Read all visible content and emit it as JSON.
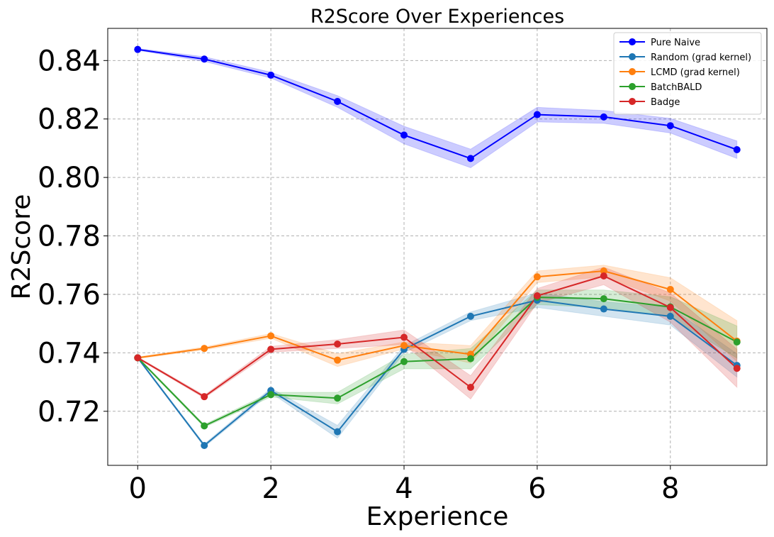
{
  "chart_data": {
    "type": "line",
    "title": "R2Score Over Experiences",
    "xlabel": "Experience",
    "ylabel": "R2Score",
    "xlim": [
      -0.45,
      9.45
    ],
    "ylim": [
      0.7015,
      0.851
    ],
    "xticks": [
      0,
      2,
      4,
      6,
      8
    ],
    "xtick_labels": [
      "0",
      "2",
      "4",
      "6",
      "8"
    ],
    "yticks": [
      0.72,
      0.74,
      0.76,
      0.78,
      0.8,
      0.82,
      0.84
    ],
    "ytick_labels": [
      "0.72",
      "0.74",
      "0.76",
      "0.78",
      "0.80",
      "0.82",
      "0.84"
    ],
    "grid": true,
    "legend_position": "top-right",
    "x": [
      0,
      1,
      2,
      3,
      4,
      5,
      6,
      7,
      8,
      9
    ],
    "series": [
      {
        "name": "Pure Naive",
        "color": "#0000ff",
        "values": [
          0.8438,
          0.8405,
          0.835,
          0.826,
          0.8145,
          0.8065,
          0.8215,
          0.8207,
          0.8177,
          0.8095
        ],
        "band": [
          0.0003,
          0.0008,
          0.001,
          0.002,
          0.003,
          0.0032,
          0.0025,
          0.0022,
          0.0025,
          0.003
        ]
      },
      {
        "name": "Random (grad kernel)",
        "color": "#1f77b4",
        "values": [
          0.7383,
          0.7083,
          0.7271,
          0.713,
          0.7412,
          0.7525,
          0.758,
          0.755,
          0.7525,
          0.7357
        ],
        "band": [
          0.0003,
          0.0005,
          0.0008,
          0.0022,
          0.0012,
          0.0015,
          0.0025,
          0.0025,
          0.003,
          0.004
        ]
      },
      {
        "name": "LCMD (grad kernel)",
        "color": "#ff7f0e",
        "values": [
          0.7383,
          0.7415,
          0.7458,
          0.7375,
          0.7425,
          0.7395,
          0.766,
          0.768,
          0.7617,
          0.744
        ],
        "band": [
          0.0003,
          0.0005,
          0.0008,
          0.0022,
          0.0012,
          0.003,
          0.002,
          0.002,
          0.004,
          0.007
        ]
      },
      {
        "name": "BatchBALD",
        "color": "#2ca02c",
        "values": [
          0.7383,
          0.715,
          0.7257,
          0.7245,
          0.737,
          0.738,
          0.759,
          0.7585,
          0.7557,
          0.7437
        ],
        "band": [
          0.0003,
          0.0005,
          0.0008,
          0.002,
          0.0025,
          0.0035,
          0.0025,
          0.003,
          0.0035,
          0.0055
        ]
      },
      {
        "name": "Badge",
        "color": "#d62728",
        "values": [
          0.7383,
          0.725,
          0.7412,
          0.743,
          0.7453,
          0.7282,
          0.7595,
          0.7663,
          0.7555,
          0.7347
        ],
        "band": [
          0.0003,
          0.0005,
          0.001,
          0.0015,
          0.0025,
          0.004,
          0.0025,
          0.003,
          0.005,
          0.0065
        ]
      }
    ]
  }
}
